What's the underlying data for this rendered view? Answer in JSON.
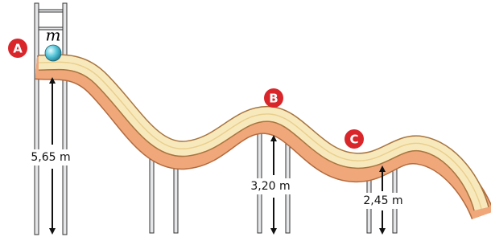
{
  "mass_label": "m",
  "points": [
    {
      "label": "A"
    },
    {
      "label": "B"
    },
    {
      "label": "C"
    }
  ],
  "heights": [
    {
      "label": "5,65 m"
    },
    {
      "label": "3,20 m"
    },
    {
      "label": "2,45 m"
    }
  ]
}
